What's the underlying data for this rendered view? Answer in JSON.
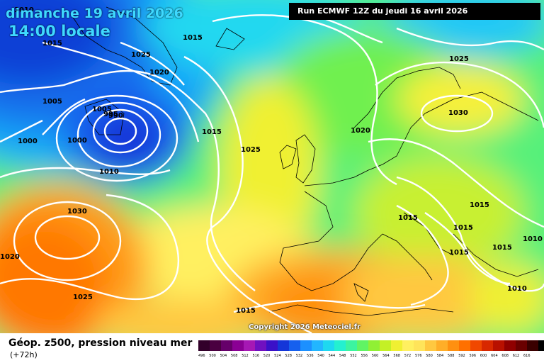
{
  "header": {
    "date_line": "dimanche 19 avril 2026",
    "time_line": "14:00 locale",
    "run_info": "Run ECMWF 12Z du jeudi 16 avril 2026",
    "copyright": "Copyright 2026 Meteociel.fr"
  },
  "footer": {
    "title": "Géop. z500, pression niveau mer",
    "subtitle": "(+72h)"
  },
  "isobar_labels": [
    "1010",
    "1015",
    "1025",
    "1020",
    "1005",
    "1005",
    "1000",
    "995",
    "990",
    "1015",
    "1025",
    "1010",
    "1000",
    "1030",
    "1020",
    "1025",
    "1015",
    "1020",
    "1025",
    "1030",
    "1015",
    "1015",
    "1015",
    "1015",
    "1010",
    "1010",
    "1015",
    "1015"
  ],
  "legend": {
    "labels": [
      "496",
      "500",
      "504",
      "508",
      "512",
      "516",
      "520",
      "524",
      "528",
      "532",
      "536",
      "540",
      "544",
      "548",
      "552",
      "556",
      "560",
      "564",
      "568",
      "572",
      "576",
      "580",
      "584",
      "588",
      "592",
      "596",
      "600",
      "604",
      "608",
      "612",
      "616"
    ],
    "colors": [
      "#32002a",
      "#4a0040",
      "#66006a",
      "#8a0094",
      "#a618b4",
      "#7010c0",
      "#3a10c8",
      "#1436d8",
      "#1660ee",
      "#1c90ff",
      "#22b6ff",
      "#1ed8f0",
      "#24f0d0",
      "#3cf4a0",
      "#60f464",
      "#90f034",
      "#c4f026",
      "#f0f032",
      "#fff060",
      "#ffe45a",
      "#ffc840",
      "#ffae28",
      "#ff9010",
      "#ff7000",
      "#f04800",
      "#d82800",
      "#b81000",
      "#900000",
      "#6a0000",
      "#3a0000",
      "#000000"
    ]
  }
}
